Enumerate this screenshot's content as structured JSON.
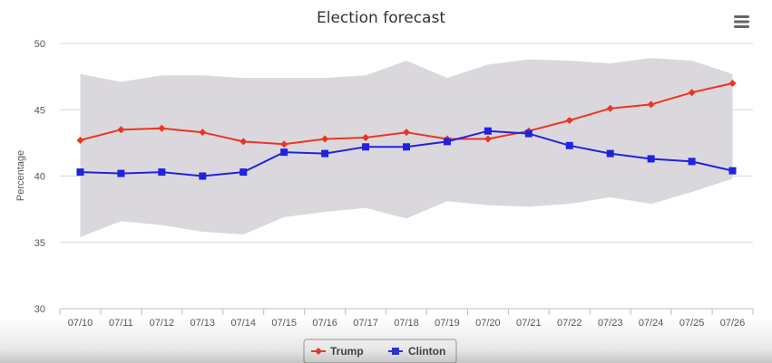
{
  "chart_data": {
    "type": "line",
    "title": "Election forecast",
    "ylabel": "Percentage",
    "xlabel": "",
    "ylim": [
      30,
      50
    ],
    "yticks": [
      30,
      35,
      40,
      45,
      50
    ],
    "grid": true,
    "legend_position": "bottom-center",
    "categories": [
      "07/10",
      "07/11",
      "07/12",
      "07/13",
      "07/14",
      "07/15",
      "07/16",
      "07/17",
      "07/18",
      "07/19",
      "07/20",
      "07/21",
      "07/22",
      "07/23",
      "07/24",
      "07/25",
      "07/26"
    ],
    "series": [
      {
        "name": "Trump",
        "color": "#ee3322",
        "marker": "diamond",
        "values": [
          42.7,
          43.5,
          43.6,
          43.3,
          42.6,
          42.4,
          42.8,
          42.9,
          43.3,
          42.8,
          42.8,
          43.4,
          44.2,
          45.1,
          45.4,
          46.3,
          47.0
        ]
      },
      {
        "name": "Clinton",
        "color": "#2222dd",
        "marker": "square",
        "values": [
          40.3,
          40.2,
          40.3,
          40.0,
          40.3,
          41.8,
          41.7,
          42.2,
          42.2,
          42.6,
          43.4,
          43.2,
          42.3,
          41.7,
          41.3,
          41.1,
          40.4
        ]
      }
    ],
    "band": {
      "color": "#d6d4d8",
      "upper": [
        47.7,
        47.1,
        47.6,
        47.6,
        47.4,
        47.4,
        47.4,
        47.6,
        48.7,
        47.4,
        48.4,
        48.8,
        48.7,
        48.5,
        48.9,
        48.7,
        47.7
      ],
      "lower": [
        35.4,
        36.6,
        36.3,
        35.8,
        35.6,
        36.9,
        37.3,
        37.6,
        36.8,
        38.1,
        37.8,
        37.7,
        37.9,
        38.4,
        37.9,
        38.8,
        39.8
      ]
    }
  },
  "toolbar": {
    "menu_icon": "hamburger-menu-icon"
  }
}
